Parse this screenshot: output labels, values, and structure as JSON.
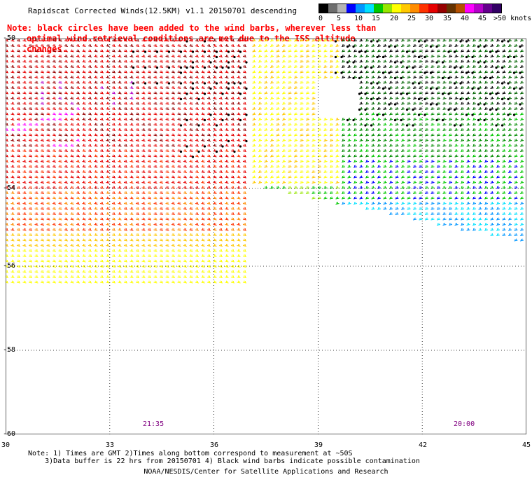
{
  "title": "Rapidscat Corrected Winds(12.5KM) v1.1 20150701 descending",
  "note": {
    "line1": "Note: black circles have been added to the wind barbs, wherever less than",
    "line2": "optimal wind retrieval conditions are met due to the ISS altitude changes."
  },
  "legend": {
    "unit": "knots",
    "colors": [
      "#000000",
      "#6e6e6e",
      "#b4b4b4",
      "#0000ff",
      "#0096ff",
      "#00e1ff",
      "#00c800",
      "#96e600",
      "#ffff00",
      "#ffc800",
      "#ff8c00",
      "#ff3200",
      "#e60000",
      "#960000",
      "#643200",
      "#b45000",
      "#ff00ff",
      "#b400c8",
      "#64008c",
      "#320064"
    ],
    "ticks": [
      "0",
      "5",
      "10",
      "15",
      "20",
      "25",
      "30",
      "35",
      "40",
      "45",
      ">50 knots"
    ]
  },
  "map": {
    "lat_labels": [
      "-50",
      "-54",
      "-56",
      "-58",
      "-60"
    ],
    "lon_labels": [
      "30",
      "33",
      "36",
      "39",
      "42",
      "45"
    ],
    "times": [
      {
        "label": "21:35"
      },
      {
        "label": "20:00"
      }
    ]
  },
  "footnotes": "Note: 1) Times are GMT 2)Times along bottom correspond to measurement at ~50S\n    3)Data buffer is 22 hrs from 20150701 4) Black wind barbs indicate possible contamination",
  "credit": "NOAA/NESDIS/Center for Satellite Applications and Research"
}
